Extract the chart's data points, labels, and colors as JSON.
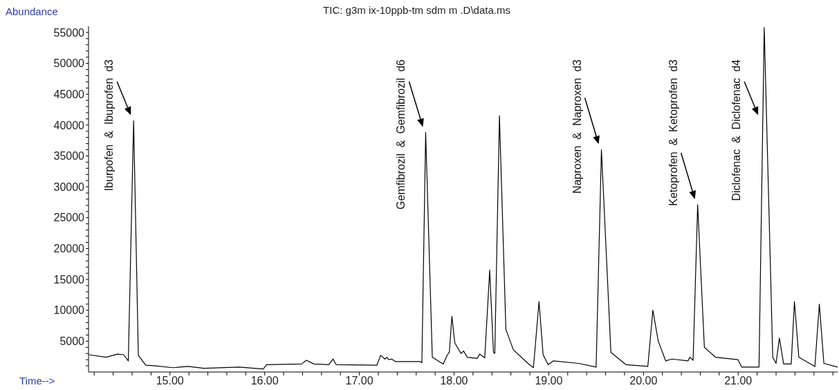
{
  "chart_data": {
    "type": "line",
    "title": "TIC: g3m ix-10ppb-tm sdm m .D\\data.ms",
    "xlabel": "Time-->",
    "ylabel": "Abundance",
    "x": [
      14.144,
      14.327,
      14.444,
      14.51,
      14.56,
      14.616,
      14.666,
      14.744,
      14.85,
      15.03,
      15.19,
      15.36,
      15.73,
      15.985,
      16.02,
      16.39,
      16.44,
      16.52,
      16.676,
      16.723,
      16.754,
      17.185,
      17.224,
      17.27,
      17.29,
      17.31,
      17.34,
      17.38,
      17.64,
      17.66,
      17.7,
      17.77,
      17.885,
      17.93,
      17.95,
      17.977,
      18.008,
      18.074,
      18.1,
      18.14,
      18.245,
      18.27,
      18.324,
      18.376,
      18.416,
      18.43,
      18.479,
      18.547,
      18.626,
      18.78,
      18.838,
      18.897,
      18.94,
      18.993,
      19.047,
      19.315,
      19.5,
      19.556,
      19.656,
      19.814,
      20.046,
      20.099,
      20.156,
      20.235,
      20.3,
      20.47,
      20.49,
      20.524,
      20.572,
      20.643,
      20.76,
      20.998,
      21.037,
      21.22,
      21.275,
      21.365,
      21.4,
      21.435,
      21.48,
      21.56,
      21.594,
      21.64,
      21.81,
      21.857,
      21.905,
      22.05
    ],
    "series": [
      {
        "color": "#000000",
        "values": [
          2800,
          2400,
          2900,
          2800,
          1800,
          40700,
          2700,
          1100,
          1000,
          700,
          900,
          600,
          800,
          500,
          1200,
          1300,
          1900,
          1300,
          1200,
          2100,
          1200,
          1100,
          2700,
          2100,
          2400,
          2000,
          2100,
          1700,
          1700,
          1500,
          38800,
          2400,
          1300,
          2800,
          3200,
          9000,
          4700,
          3000,
          3400,
          2400,
          2200,
          2900,
          2300,
          16500,
          3200,
          3000,
          41500,
          6900,
          3600,
          1400,
          700,
          11400,
          2800,
          1200,
          1800,
          1400,
          800,
          36000,
          3200,
          1200,
          900,
          10000,
          5000,
          1800,
          2100,
          1800,
          2400,
          1900,
          27100,
          4000,
          2400,
          2000,
          800,
          800,
          55800,
          2400,
          1400,
          5500,
          1300,
          1300,
          11400,
          2400,
          900,
          11000,
          1400,
          800
        ]
      }
    ],
    "xlim": [
      14.14,
      22.05
    ],
    "xticks": [
      {
        "value": 14.2,
        "label": null
      },
      {
        "value": 14.4,
        "label": null
      },
      {
        "value": 14.6,
        "label": null
      },
      {
        "value": 14.8,
        "label": null
      },
      {
        "value": 15,
        "label": "15.00"
      },
      {
        "value": 15.2,
        "label": null
      },
      {
        "value": 15.4,
        "label": null
      },
      {
        "value": 15.6,
        "label": null
      },
      {
        "value": 15.8,
        "label": null
      },
      {
        "value": 16,
        "label": "16.00"
      },
      {
        "value": 16.2,
        "label": null
      },
      {
        "value": 16.4,
        "label": null
      },
      {
        "value": 16.6,
        "label": null
      },
      {
        "value": 16.8,
        "label": null
      },
      {
        "value": 17,
        "label": "17.00"
      },
      {
        "value": 17.2,
        "label": null
      },
      {
        "value": 17.4,
        "label": null
      },
      {
        "value": 17.6,
        "label": null
      },
      {
        "value": 17.8,
        "label": null
      },
      {
        "value": 18,
        "label": "18.00"
      },
      {
        "value": 18.2,
        "label": null
      },
      {
        "value": 18.4,
        "label": null
      },
      {
        "value": 18.6,
        "label": null
      },
      {
        "value": 18.8,
        "label": null
      },
      {
        "value": 19,
        "label": "19.00"
      },
      {
        "value": 19.2,
        "label": null
      },
      {
        "value": 19.4,
        "label": null
      },
      {
        "value": 19.6,
        "label": null
      },
      {
        "value": 19.8,
        "label": null
      },
      {
        "value": 20,
        "label": "20.00"
      },
      {
        "value": 20.2,
        "label": null
      },
      {
        "value": 20.4,
        "label": null
      },
      {
        "value": 20.6,
        "label": null
      },
      {
        "value": 20.8,
        "label": null
      },
      {
        "value": 21,
        "label": "21.00"
      },
      {
        "value": 21.2,
        "label": null
      },
      {
        "value": 21.4,
        "label": null
      },
      {
        "value": 21.6,
        "label": null
      },
      {
        "value": 21.8,
        "label": null
      },
      {
        "value": 22,
        "label": null
      }
    ],
    "ylim": [
      0,
      56000
    ],
    "yticks": [
      {
        "value": 1000,
        "label": null
      },
      {
        "value": 2000,
        "label": null
      },
      {
        "value": 3000,
        "label": null
      },
      {
        "value": 4000,
        "label": null
      },
      5000,
      {
        "value": 6000,
        "label": null
      },
      {
        "value": 7000,
        "label": null
      },
      {
        "value": 8000,
        "label": null
      },
      {
        "value": 9000,
        "label": null
      },
      10000,
      {
        "value": 11000,
        "label": null
      },
      {
        "value": 12000,
        "label": null
      },
      {
        "value": 13000,
        "label": null
      },
      {
        "value": 14000,
        "label": null
      },
      15000,
      {
        "value": 16000,
        "label": null
      },
      {
        "value": 17000,
        "label": null
      },
      {
        "value": 18000,
        "label": null
      },
      {
        "value": 19000,
        "label": null
      },
      20000,
      {
        "value": 21000,
        "label": null
      },
      {
        "value": 22000,
        "label": null
      },
      {
        "value": 23000,
        "label": null
      },
      {
        "value": 24000,
        "label": null
      },
      25000,
      {
        "value": 26000,
        "label": null
      },
      {
        "value": 27000,
        "label": null
      },
      {
        "value": 28000,
        "label": null
      },
      {
        "value": 29000,
        "label": null
      },
      30000,
      {
        "value": 31000,
        "label": null
      },
      {
        "value": 32000,
        "label": null
      },
      {
        "value": 33000,
        "label": null
      },
      {
        "value": 34000,
        "label": null
      },
      35000,
      {
        "value": 36000,
        "label": null
      },
      {
        "value": 37000,
        "label": null
      },
      {
        "value": 38000,
        "label": null
      },
      {
        "value": 39000,
        "label": null
      },
      40000,
      {
        "value": 41000,
        "label": null
      },
      {
        "value": 42000,
        "label": null
      },
      {
        "value": 43000,
        "label": null
      },
      {
        "value": 44000,
        "label": null
      },
      45000,
      {
        "value": 46000,
        "label": null
      },
      {
        "value": 47000,
        "label": null
      },
      {
        "value": 48000,
        "label": null
      },
      {
        "value": 49000,
        "label": null
      },
      50000,
      {
        "value": 51000,
        "label": null
      },
      {
        "value": 52000,
        "label": null
      },
      {
        "value": 53000,
        "label": null
      },
      {
        "value": 54000,
        "label": null
      },
      55000
    ],
    "grid": false,
    "legend": false,
    "marker": "none",
    "line_style": "solid",
    "annotations": [
      {
        "text": "Iburpofen  &  Ibuprofen  d3",
        "x": 14.616,
        "y": 40700
      },
      {
        "text": "Gemfibrozil  &  Gemfibrozil  d6",
        "x": 17.7,
        "y": 38800
      },
      {
        "text": "Naproxen  &  Naproxen  d3",
        "x": 19.556,
        "y": 36000
      },
      {
        "text": "Ketoprofen  &  Ketoprofen  d3",
        "x": 20.572,
        "y": 27100
      },
      {
        "text": "Diclofenac  &  Diclofenac  d4",
        "x": 21.24,
        "y": 40700
      }
    ]
  }
}
